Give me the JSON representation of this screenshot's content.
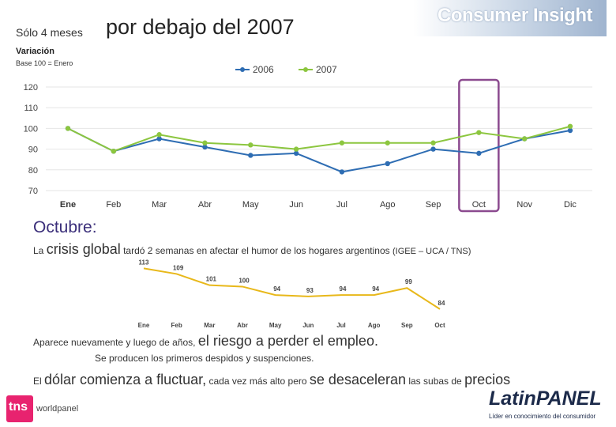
{
  "header": {
    "title_small": "Sólo 4 meses",
    "title_big": "por debajo del 2007",
    "brand": "Consumer Insight"
  },
  "chart_labels": {
    "variation": "Variación",
    "base": "Base 100 = Enero"
  },
  "text": {
    "octubre": "Octubre:",
    "line1_a": "La",
    "line1_b": "crisis global",
    "line1_c": "tardó 2 semanas en afectar el humor de los hogares argentinos",
    "line1_d": "(IGEE – UCA / TNS)",
    "line2_a": "Aparece nuevamente y luego de años,",
    "line2_b": "el riesgo a perder el empleo.",
    "line3": "Se producen los primeros despidos y suspenciones.",
    "line4_a": "El",
    "line4_b": "dólar comienza a fluctuar,",
    "line4_c": "cada vez más alto pero",
    "line4_d": "se desaceleran",
    "line4_e": "las subas de",
    "line4_f": "precios"
  },
  "logos": {
    "tns": "tns",
    "tns_sub": "worldpanel",
    "latinpanel": "LatinPANEL",
    "latinpanel_tag": "Líder en conocimiento del consumidor"
  },
  "colors": {
    "series_2006": "#2e6db3",
    "series_2007": "#8cc63f",
    "series_igee": "#e8b81a",
    "highlight": "#8b4a8f",
    "grid": "#e6e6e6"
  },
  "chart_data": [
    {
      "type": "line",
      "title": "",
      "ylabel": "Variación",
      "ylim": [
        70,
        120
      ],
      "yticks": [
        "70",
        "80",
        "90",
        "100",
        "110",
        "120"
      ],
      "categories": [
        "Ene",
        "Feb",
        "Mar",
        "Abr",
        "May",
        "Jun",
        "Jul",
        "Ago",
        "Sep",
        "Oct",
        "Nov",
        "Dic"
      ],
      "series": [
        {
          "name": "2006",
          "values": [
            100,
            89,
            95,
            91,
            87,
            88,
            79,
            83,
            90,
            88,
            95,
            99
          ]
        },
        {
          "name": "2007",
          "values": [
            100,
            89,
            97,
            93,
            92,
            90,
            93,
            93,
            93,
            98,
            95,
            101
          ]
        }
      ],
      "legend": "top-center",
      "highlight_category": "Oct"
    },
    {
      "type": "line",
      "title": "IGEE",
      "ylim": [
        80,
        116
      ],
      "categories": [
        "Ene",
        "Feb",
        "Mar",
        "Abr",
        "May",
        "Jun",
        "Jul",
        "Ago",
        "Sep",
        "Oct"
      ],
      "series": [
        {
          "name": "IGEE",
          "values": [
            113,
            109,
            101,
            100,
            94,
            93,
            94,
            94,
            99,
            84
          ],
          "labels": [
            "113",
            "109",
            "101",
            "100",
            "94",
            "93",
            "94",
            "94",
            "99",
            "84"
          ]
        }
      ]
    }
  ]
}
